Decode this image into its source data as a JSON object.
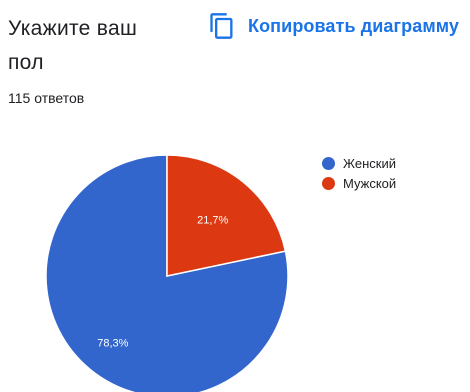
{
  "question": {
    "title": "Укажите ваш пол",
    "responses": "115 ответов"
  },
  "toolbar": {
    "copy_label": "Копировать диаграмму",
    "copy_icon": "copy-icon"
  },
  "colors": {
    "accent": "#1a73e8",
    "female": "#3366cc",
    "male": "#dc3912"
  },
  "chart_data": {
    "type": "pie",
    "categories": [
      "Женский",
      "Мужской"
    ],
    "values": [
      78.3,
      21.7
    ],
    "data_labels": [
      "78,3%",
      "21,7%"
    ],
    "colors": [
      "#3366cc",
      "#dc3912"
    ],
    "legend_position": "right"
  }
}
